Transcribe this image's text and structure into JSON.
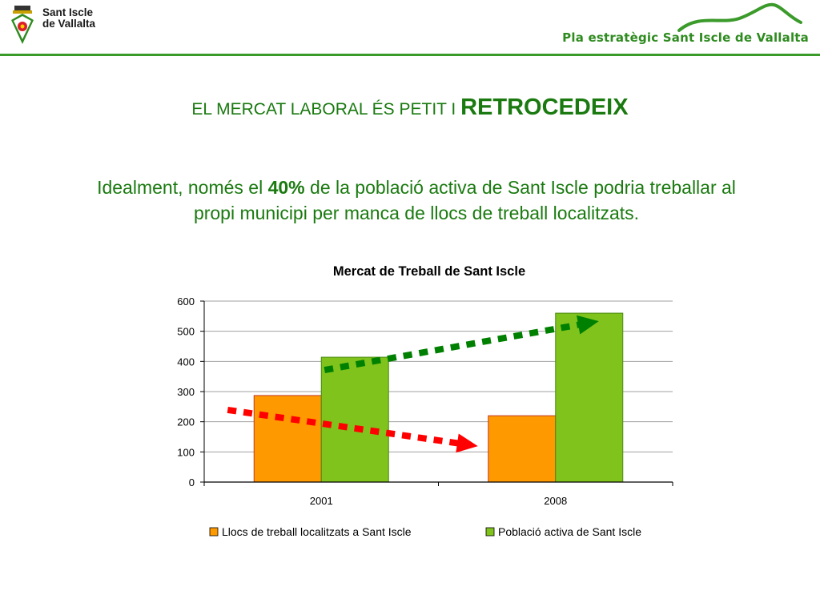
{
  "header": {
    "logo_line1": "Sant Iscle",
    "logo_line2": "de Vallalta",
    "brand": "Pla estratègic Sant Iscle de Vallalta",
    "accent_color": "#2e8b1f"
  },
  "title": {
    "prefix": "EL MERCAT LABORAL ÉS PETIT I ",
    "emphasis": "RETROCEDEIX"
  },
  "subtitle": {
    "part1": "Idealment, només el ",
    "highlight": "40%",
    "part2": " de la població activa de Sant Iscle podria treballar al propi municipi per manca de llocs de treball localitzats."
  },
  "chart_data": {
    "type": "bar",
    "title": "Mercat de Treball de Sant Iscle",
    "categories": [
      "2001",
      "2008"
    ],
    "series": [
      {
        "name": "Llocs de treball localitzats a Sant Iscle",
        "values": [
          287,
          220
        ],
        "color": "#ff9900"
      },
      {
        "name": "Població activa de Sant Iscle",
        "values": [
          414,
          560
        ],
        "color": "#7fc31c"
      }
    ],
    "ylim": [
      0,
      600
    ],
    "yticks": [
      0,
      100,
      200,
      300,
      400,
      500,
      600
    ],
    "grid": true,
    "legend": "bottom",
    "trend_arrows": [
      {
        "series": "Llocs de treball localitzats a Sant Iscle",
        "direction": "down",
        "color": "#ff0000"
      },
      {
        "series": "Població activa de Sant Iscle",
        "direction": "up",
        "color": "#008000"
      }
    ]
  }
}
